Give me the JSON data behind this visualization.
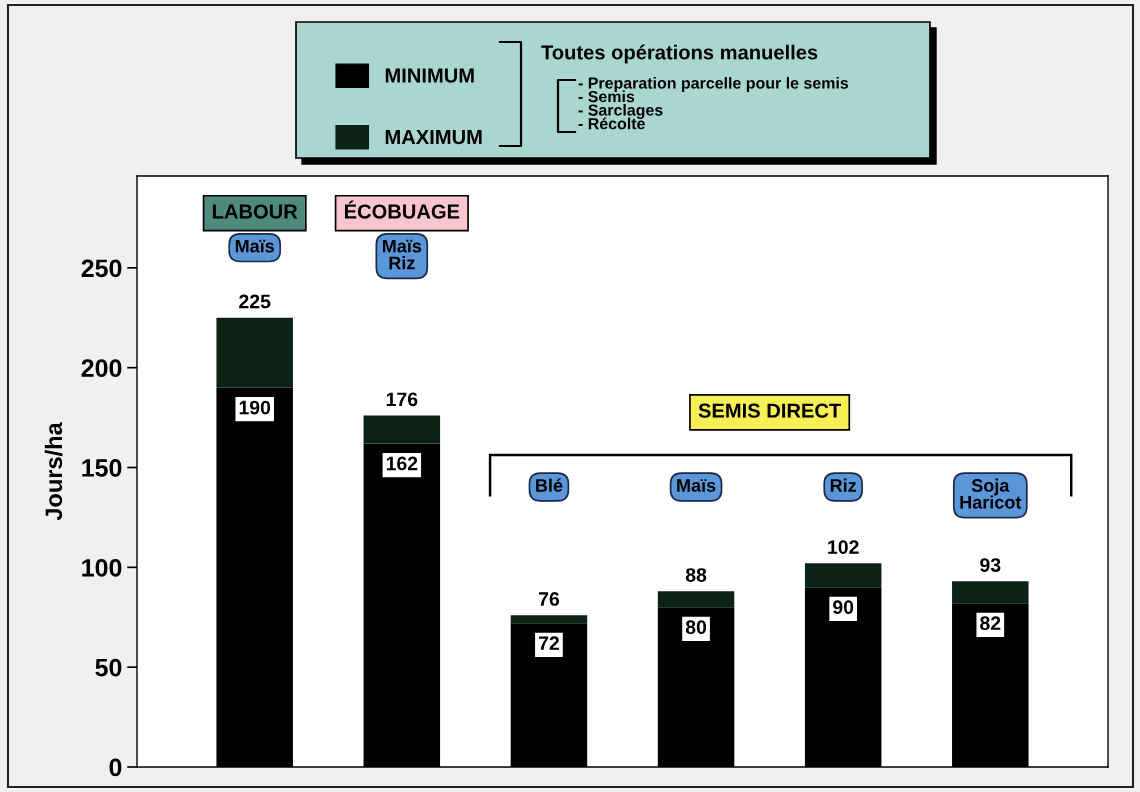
{
  "chart_data": {
    "type": "bar",
    "stacked": true,
    "ylabel": "Jours/ha",
    "categories": [
      "Maïs",
      "Maïs\nRiz",
      "Blé",
      "Maïs",
      "Riz",
      "Soja\nHaricot"
    ],
    "series": [
      {
        "name": "MINIMUM",
        "color": "#000000",
        "values": [
          190,
          162,
          72,
          80,
          90,
          82
        ],
        "value_labels": [
          "190",
          "162",
          "72",
          "80",
          "90",
          "82"
        ]
      },
      {
        "name": "MAXIMUM",
        "color": "#0b2217",
        "values": [
          35,
          14,
          4,
          8,
          12,
          11
        ]
      }
    ],
    "totals": [
      "225",
      "176",
      "76",
      "88",
      "102",
      "93"
    ],
    "ylim": [
      0,
      296
    ],
    "yticks": [
      0,
      50,
      100,
      150,
      200,
      250
    ],
    "grid": false,
    "legend": "top",
    "annotations": [
      "LABOUR",
      "ÉCOBUAGE",
      "SEMIS DIRECT",
      "Toutes opérations manuelles",
      "- Preparation parcelle pour le semis\n- Semis\n- Sarclages\n- Récolte"
    ]
  }
}
